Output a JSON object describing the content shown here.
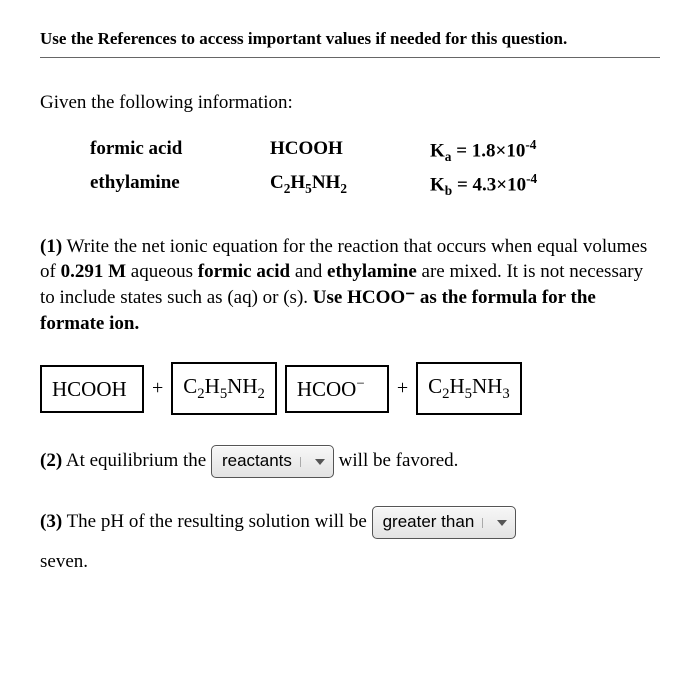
{
  "header": {
    "instruction": "Use the References to access important values if needed for this question."
  },
  "given_label": "Given the following information:",
  "substances": [
    {
      "name": "formic acid",
      "formula_html": "HCOOH",
      "k_label": "K",
      "k_sub": "a",
      "k_value": "1.8×10",
      "k_exp": "-4"
    },
    {
      "name": "ethylamine",
      "formula_html": "C<sub>2</sub>H<sub>5</sub>NH<sub>2</sub>",
      "k_label": "K",
      "k_sub": "b",
      "k_value": "4.3×10",
      "k_exp": "-4"
    }
  ],
  "q1": {
    "num": "(1)",
    "text_a": "Write the net ionic equation for the reaction that occurs when equal volumes of ",
    "conc": "0.291 M",
    "text_b": " aqueous ",
    "acid": "formic acid",
    "text_c": " and ",
    "base": "ethylamine",
    "text_d": " are mixed. It is not necessary to include states such as (aq) or (s). ",
    "note": "Use HCOO⁻ as the formula for the formate ion."
  },
  "equation": {
    "r1": "HCOOH",
    "r2": "C<sub>2</sub>H<sub>5</sub>NH<sub>2</sub>",
    "p1": "HCOO<sup>−</sup>",
    "p2": "C<sub>2</sub>H<sub>5</sub>NH<sub>3</sub>",
    "plus": "+"
  },
  "q2": {
    "num": "(2)",
    "pre": "At equilibrium the",
    "select": "reactants",
    "post": "will be favored."
  },
  "q3": {
    "num": "(3)",
    "pre": "The pH of the resulting solution will be",
    "select": "greater than",
    "post": "seven."
  }
}
